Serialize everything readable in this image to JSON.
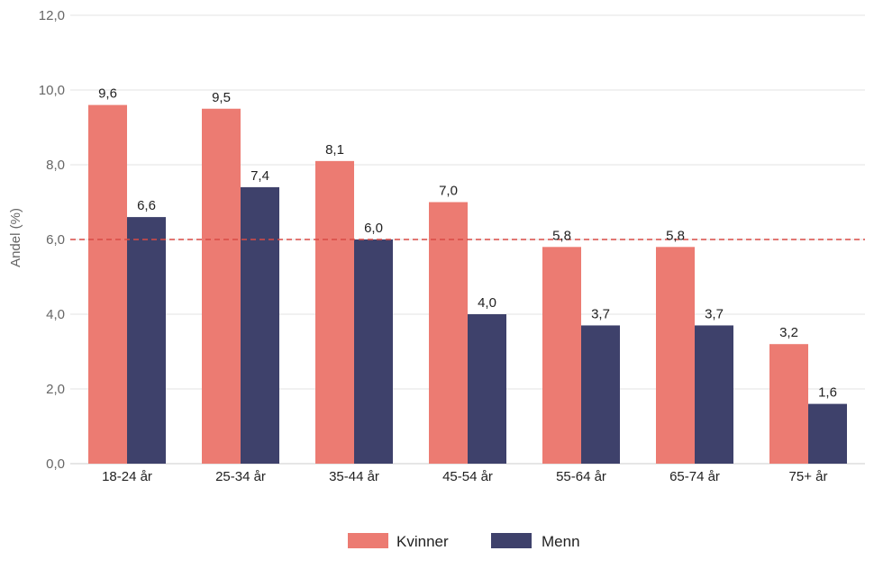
{
  "chart_data": {
    "type": "bar",
    "ylabel": "Andel (%)",
    "ylim": [
      0,
      12
    ],
    "yticks": [
      0,
      2,
      4,
      6,
      8,
      10,
      12
    ],
    "ytick_labels": [
      "0,0",
      "2,0",
      "4,0",
      "6,0",
      "8,0",
      "10,0",
      "12,0"
    ],
    "grid": true,
    "legend_position": "bottom",
    "categories": [
      "18-24 år",
      "25-34 år",
      "35-44 år",
      "45-54 år",
      "55-64 år",
      "65-74 år",
      "75+ år"
    ],
    "series": [
      {
        "name": "Kvinner",
        "color": "#ec7b72",
        "values": [
          9.6,
          9.5,
          8.1,
          7.0,
          5.8,
          5.8,
          3.2
        ],
        "labels": [
          "9,6",
          "9,5",
          "8,1",
          "7,0",
          "5,8",
          "5,8",
          "3,2"
        ]
      },
      {
        "name": "Menn",
        "color": "#3e416b",
        "values": [
          6.6,
          7.4,
          6.0,
          4.0,
          3.7,
          3.7,
          1.6
        ],
        "labels": [
          "6,6",
          "7,4",
          "6,0",
          "4,0",
          "3,7",
          "3,7",
          "1,6"
        ]
      }
    ],
    "reference_line": {
      "value": 6.0,
      "color": "#d94a45",
      "style": "dashed"
    }
  }
}
